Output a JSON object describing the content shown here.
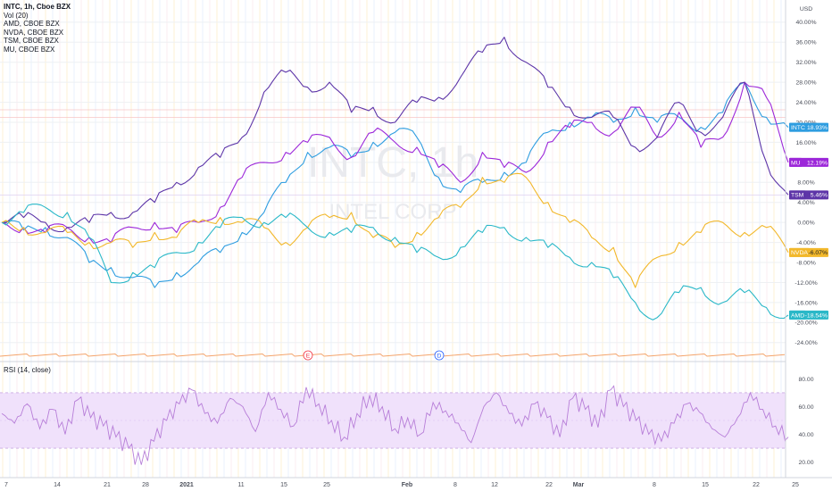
{
  "legend": {
    "title": "INTC, 1h, Cboe BZX",
    "vol": "Vol (20)",
    "entries": [
      "AMD, CBOE BZX",
      "NVDA, CBOE BZX",
      "TSM, CBOE BZX",
      "MU, CBOE BZX"
    ]
  },
  "watermark": {
    "symbol": "INTC, 1h",
    "name": "INTEL CORP"
  },
  "rsi_title": "RSI (14, close)",
  "axis_unit": "USD",
  "event_markers": [
    "E",
    "D"
  ],
  "chart_data": [
    {
      "type": "line",
      "title": "INTC, 1h, Cboe BZX",
      "x_ticks": [
        "7",
        "14",
        "21",
        "28",
        "2021",
        "11",
        "15",
        "25",
        "Feb",
        "8",
        "12",
        "22",
        "Mar",
        "8",
        "15",
        "22",
        "25"
      ],
      "y_ticks": [
        "40.00%",
        "36.00%",
        "32.00%",
        "28.00%",
        "24.00%",
        "20.00%",
        "16.00%",
        "12.00%",
        "8.00%",
        "4.00%",
        "0.00%",
        "-4.00%",
        "-8.00%",
        "-12.00%",
        "-16.00%",
        "-20.00%",
        "-24.00%"
      ],
      "ylim": [
        -26,
        43
      ],
      "series": [
        {
          "name": "INTC",
          "color": "#2e9de0",
          "last_label": "18.93%",
          "values": [
            0,
            -1.5,
            -1,
            -3,
            -8,
            -9,
            -11,
            -13,
            -10,
            -8,
            -6,
            -2,
            2,
            8,
            14,
            15,
            13,
            16,
            18,
            17,
            9,
            6,
            8,
            10,
            12,
            18,
            20,
            21,
            20,
            23,
            20,
            21,
            19,
            22,
            28,
            21,
            19
          ]
        },
        {
          "name": "MU",
          "color": "#9c27d9",
          "last_label": "12.19%",
          "values": [
            0,
            -1,
            -2,
            -1,
            -3,
            -4,
            -1,
            0,
            -2,
            0,
            3,
            9,
            12,
            14,
            16,
            17,
            13,
            18,
            16,
            15,
            11,
            8,
            14,
            11,
            10,
            16,
            19,
            20,
            18,
            23,
            17,
            22,
            15,
            17,
            28,
            25,
            12
          ]
        },
        {
          "name": "TSM",
          "color": "#5d35a8",
          "last_label": "5.46%",
          "values": [
            0,
            1,
            0,
            -1,
            0,
            2,
            2,
            4,
            8,
            11,
            13,
            17,
            26,
            30,
            27,
            28,
            22,
            23,
            20,
            24,
            25,
            29,
            34,
            37,
            32,
            27,
            23,
            21,
            21,
            15,
            17,
            24,
            18,
            21,
            28,
            12,
            5.5
          ]
        },
        {
          "name": "NVDA",
          "color": "#f2b82b",
          "last_label": "-6.07%",
          "values": [
            0,
            -1,
            -2,
            -2,
            -4,
            -4,
            -5,
            -2,
            -3,
            0,
            1,
            0,
            -1,
            -4,
            -1,
            1,
            2,
            -3,
            -5,
            -2,
            1,
            3,
            9,
            8,
            9,
            4,
            0,
            -3,
            -5,
            -13,
            -7,
            -4,
            -2,
            0,
            -2,
            -1,
            -6
          ]
        },
        {
          "name": "AMD",
          "color": "#2ab8c8",
          "last_label": "-18.54%",
          "values": [
            0,
            2,
            3,
            2,
            -3,
            -12,
            -10,
            -9,
            -6,
            -4,
            -1,
            1,
            0,
            1,
            -1,
            -2,
            -2,
            -1,
            -3,
            -6,
            -7,
            -5,
            -2,
            -1,
            -3,
            -5,
            -7,
            -8,
            -11,
            -16,
            -19,
            -14,
            -13,
            -16,
            -14,
            -17,
            -18.5
          ]
        }
      ]
    },
    {
      "type": "line",
      "title": "RSI (14, close)",
      "y_ticks": [
        "80.00",
        "60.00",
        "40.00",
        "20.00"
      ],
      "ylim": [
        12,
        88
      ],
      "band": [
        30,
        70
      ],
      "series": [
        {
          "name": "RSI",
          "color": "#b77ed8",
          "values": [
            55,
            48,
            62,
            44,
            58,
            40,
            65,
            52,
            46,
            38,
            30,
            18,
            35,
            50,
            62,
            72,
            55,
            48,
            66,
            60,
            42,
            70,
            58,
            46,
            74,
            62,
            50,
            38,
            55,
            68,
            60,
            44,
            52,
            40,
            63,
            57,
            48,
            34,
            60,
            70,
            55,
            46,
            62,
            52,
            38,
            66,
            58,
            45,
            72,
            60,
            50,
            40,
            35,
            48,
            62,
            56,
            44,
            38,
            52,
            70,
            58,
            46,
            38
          ]
        }
      ]
    }
  ]
}
